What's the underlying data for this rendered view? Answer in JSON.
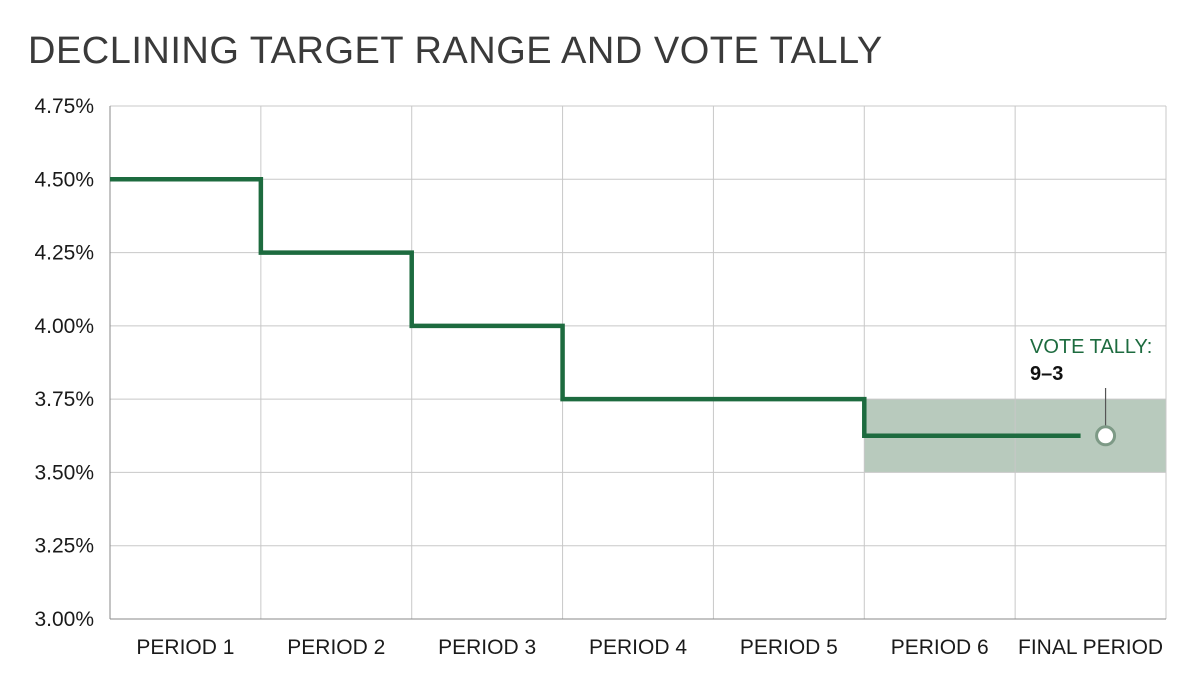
{
  "chart_data": {
    "type": "line",
    "title": "DECLINING TARGET RANGE AND VOTE TALLY",
    "xlabel": "",
    "ylabel": "",
    "categories": [
      "PERIOD 1",
      "PERIOD 2",
      "PERIOD 3",
      "PERIOD 4",
      "PERIOD 5",
      "PERIOD 6",
      "FINAL PERIOD"
    ],
    "y_ticks": [
      "3.00%",
      "3.25%",
      "3.50%",
      "3.75%",
      "4.00%",
      "4.25%",
      "4.50%",
      "4.75%"
    ],
    "ylim": [
      3.0,
      4.75
    ],
    "grid": true,
    "series": [
      {
        "values": [
          4.5,
          4.25,
          4.0,
          3.75,
          3.75,
          3.625,
          3.625
        ]
      }
    ],
    "highlight_band": {
      "from_category": "PERIOD 6",
      "to_category": "FINAL PERIOD",
      "y_range": [
        3.5,
        3.75
      ]
    },
    "annotation": {
      "label": "VOTE TALLY:",
      "value": "9–3",
      "category": "FINAL PERIOD",
      "y": 3.625
    },
    "colors": {
      "line": "#1d6b3f",
      "band": "#b8cabd",
      "grid": "#c8c8c8",
      "label_green": "#1d6b3f"
    }
  }
}
